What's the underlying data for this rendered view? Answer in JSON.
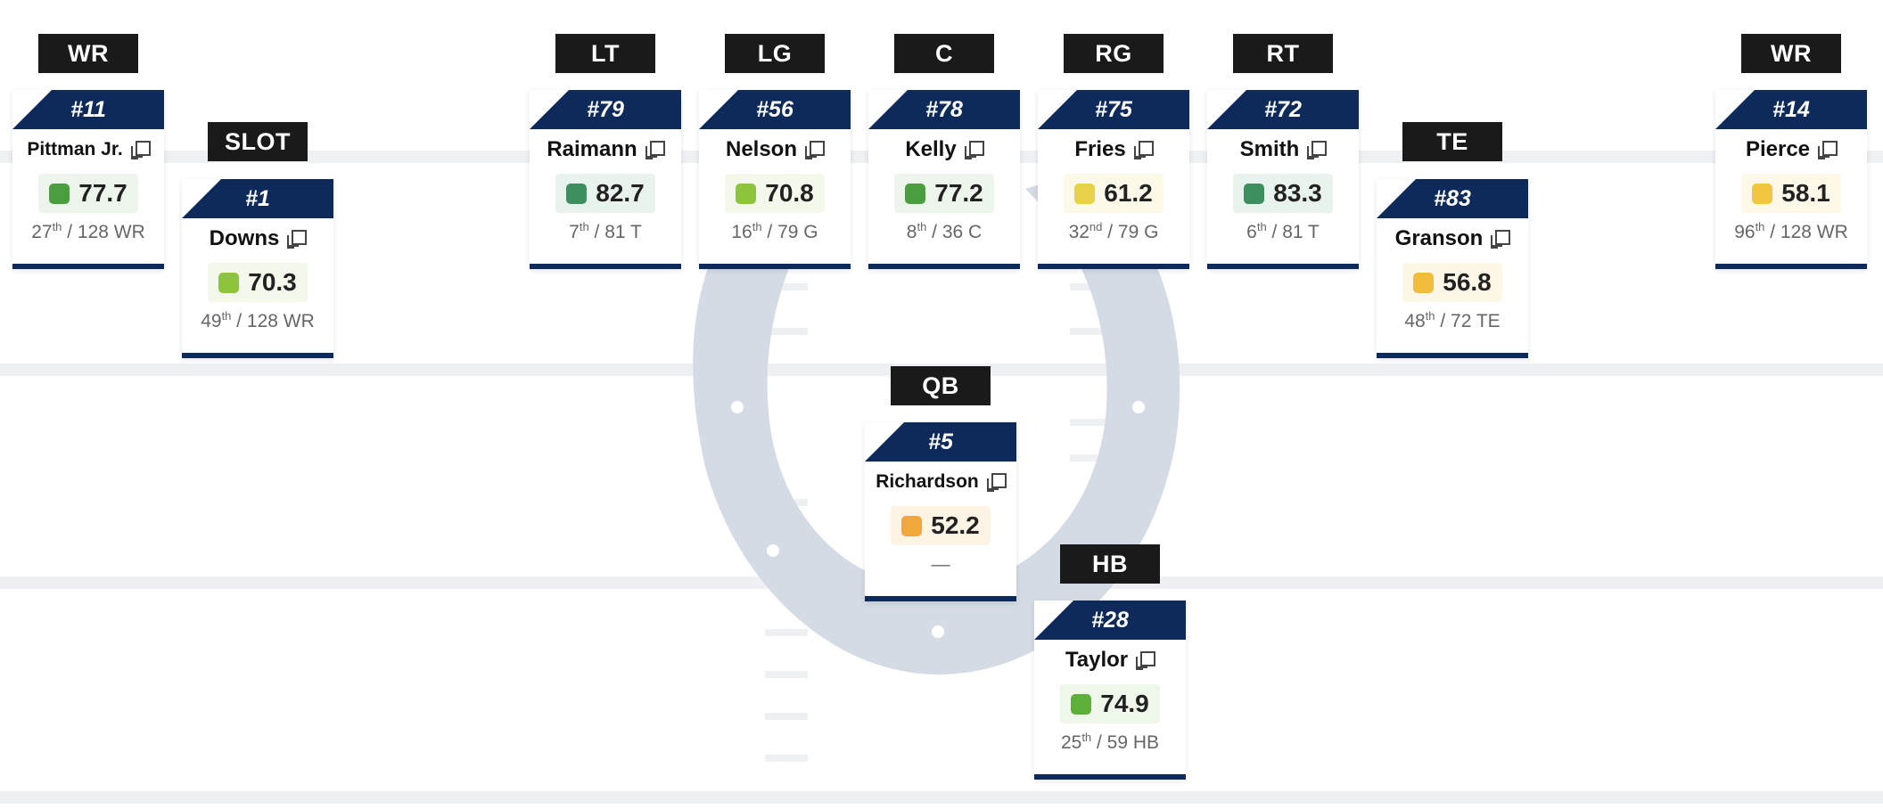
{
  "colors": {
    "navy": "#0d2a5a",
    "label_bg": "#1a1a1a",
    "field_lines": "#eef0f4",
    "horseshoe": "#d5dbe4"
  },
  "players": [
    {
      "pos": "WR",
      "number": "#11",
      "name": "Pittman Jr.",
      "grade": "77.7",
      "grade_color": "#4a9e3f",
      "grade_bg": "#eef5ec",
      "rank_num": "27",
      "rank_suffix": "th",
      "rank_rest": " / 128 WR"
    },
    {
      "pos": "SLOT",
      "number": "#1",
      "name": "Downs",
      "grade": "70.3",
      "grade_color": "#8cc43c",
      "grade_bg": "#f3f8ea",
      "rank_num": "49",
      "rank_suffix": "th",
      "rank_rest": " / 128 WR"
    },
    {
      "pos": "LT",
      "number": "#79",
      "name": "Raimann",
      "grade": "82.7",
      "grade_color": "#3d8f5f",
      "grade_bg": "#e9f3ee",
      "rank_num": "7",
      "rank_suffix": "th",
      "rank_rest": " / 81 T"
    },
    {
      "pos": "LG",
      "number": "#56",
      "name": "Nelson",
      "grade": "70.8",
      "grade_color": "#8cc43c",
      "grade_bg": "#f3f8ea",
      "rank_num": "16",
      "rank_suffix": "th",
      "rank_rest": " / 79 G"
    },
    {
      "pos": "C",
      "number": "#78",
      "name": "Kelly",
      "grade": "77.2",
      "grade_color": "#4a9e3f",
      "grade_bg": "#eef5ec",
      "rank_num": "8",
      "rank_suffix": "th",
      "rank_rest": " / 36 C"
    },
    {
      "pos": "RG",
      "number": "#75",
      "name": "Fries",
      "grade": "61.2",
      "grade_color": "#ead14a",
      "grade_bg": "#fcf9e8",
      "rank_num": "32",
      "rank_suffix": "nd",
      "rank_rest": " / 79 G"
    },
    {
      "pos": "RT",
      "number": "#72",
      "name": "Smith",
      "grade": "83.3",
      "grade_color": "#3d8f5f",
      "grade_bg": "#e9f3ee",
      "rank_num": "6",
      "rank_suffix": "th",
      "rank_rest": " / 81 T"
    },
    {
      "pos": "TE",
      "number": "#83",
      "name": "Granson",
      "grade": "56.8",
      "grade_color": "#f2bd3c",
      "grade_bg": "#fdf7e7",
      "rank_num": "48",
      "rank_suffix": "th",
      "rank_rest": " / 72 TE"
    },
    {
      "pos": "WR",
      "number": "#14",
      "name": "Pierce",
      "grade": "58.1",
      "grade_color": "#f2c640",
      "grade_bg": "#fdf8e7",
      "rank_num": "96",
      "rank_suffix": "th",
      "rank_rest": " / 128 WR"
    },
    {
      "pos": "QB",
      "number": "#5",
      "name": "Richardson",
      "grade": "52.2",
      "grade_color": "#f0a83a",
      "grade_bg": "#fdf4e6",
      "rank_num": "",
      "rank_suffix": "",
      "rank_rest": "—"
    },
    {
      "pos": "HB",
      "number": "#28",
      "name": "Taylor",
      "grade": "74.9",
      "grade_color": "#5fb03a",
      "grade_bg": "#eff6ea",
      "rank_num": "25",
      "rank_suffix": "th",
      "rank_rest": " / 59 HB"
    }
  ]
}
